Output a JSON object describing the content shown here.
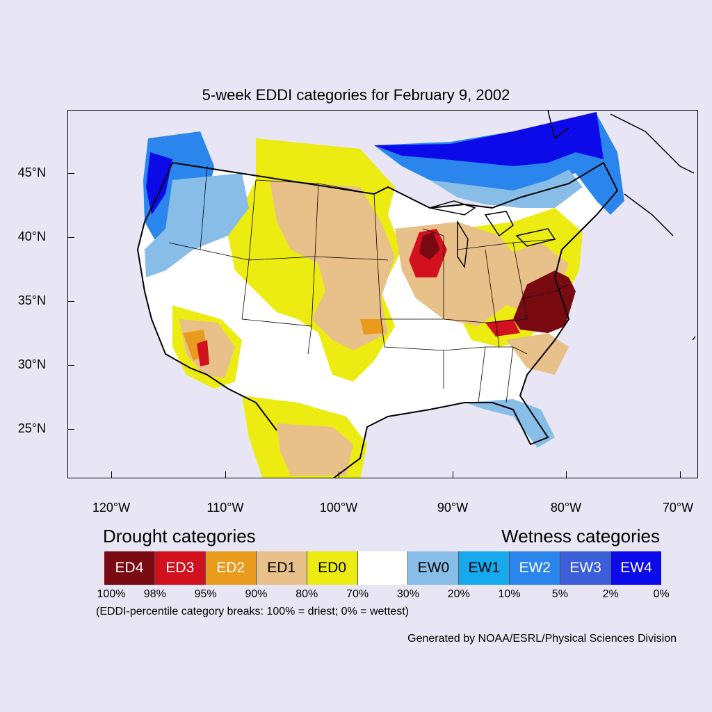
{
  "title": "5-week EDDI categories for February 9, 2002",
  "lat_labels": [
    "45°N",
    "40°N",
    "35°N",
    "30°N",
    "25°N"
  ],
  "lon_labels": [
    "120°W",
    "110°W",
    "100°W",
    "90°W",
    "80°W",
    "70°W"
  ],
  "legend": {
    "drought_heading": "Drought categories",
    "wetness_heading": "Wetness categories",
    "categories": [
      {
        "label": "ED4",
        "color": "#7a0a12",
        "text_color": "#ffffff"
      },
      {
        "label": "ED3",
        "color": "#d2111f",
        "text_color": "#ffffff"
      },
      {
        "label": "ED2",
        "color": "#e99b1d",
        "text_color": "#ffffff"
      },
      {
        "label": "ED1",
        "color": "#e8c08a",
        "text_color": "#000000"
      },
      {
        "label": "ED0",
        "color": "#ecec13",
        "text_color": "#000000"
      },
      {
        "label": "",
        "color": "#ffffff",
        "text_color": "#000000"
      },
      {
        "label": "EW0",
        "color": "#88bde8",
        "text_color": "#000000"
      },
      {
        "label": "EW1",
        "color": "#17a9ee",
        "text_color": "#000000"
      },
      {
        "label": "EW2",
        "color": "#2a86ec",
        "text_color": "#ffffff"
      },
      {
        "label": "EW3",
        "color": "#3c5fd9",
        "text_color": "#ffffff"
      },
      {
        "label": "EW4",
        "color": "#0c0ae8",
        "text_color": "#ffffff"
      }
    ],
    "breaks": [
      "100%",
      "98%",
      "95%",
      "90%",
      "80%",
      "70%",
      "30%",
      "20%",
      "10%",
      "5%",
      "2%",
      "0%"
    ],
    "note": "(EDDI-percentile category breaks: 100% = driest; 0% = wettest)"
  },
  "credit": "Generated by NOAA/ESRL/Physical Sciences Division"
}
